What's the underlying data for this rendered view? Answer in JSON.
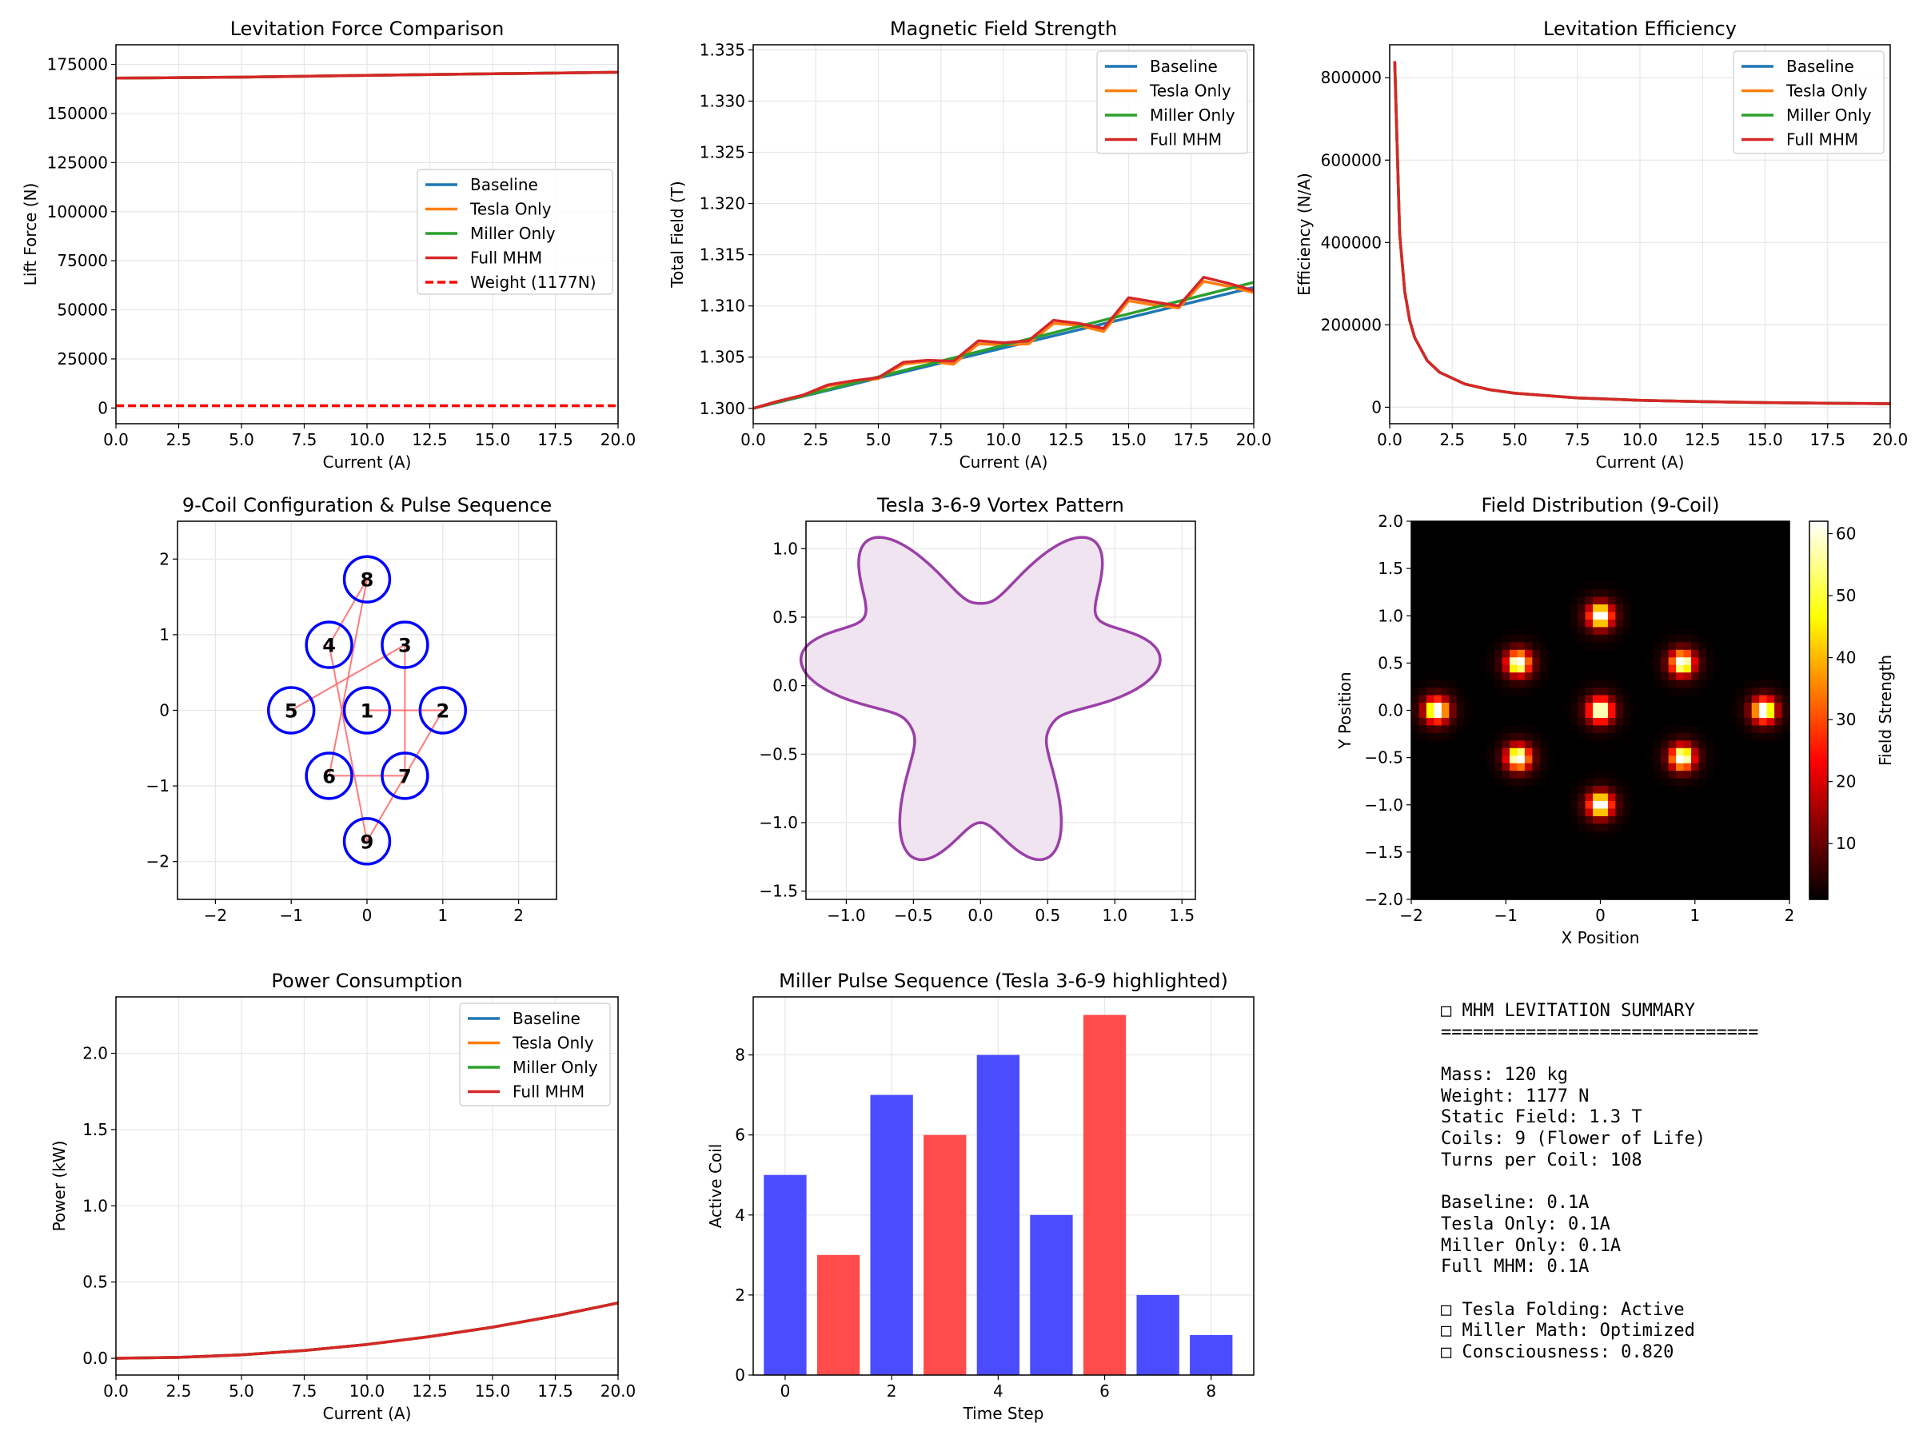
{
  "chart_data": [
    {
      "type": "line",
      "title": "Levitation Force Comparison",
      "xlabel": "Current (A)",
      "ylabel": "Lift Force (N)",
      "xlim": [
        0,
        20
      ],
      "ylim": [
        -8000,
        185000
      ],
      "xticks": [
        "0.0",
        "2.5",
        "5.0",
        "7.5",
        "10.0",
        "12.5",
        "15.0",
        "17.5",
        "20.0"
      ],
      "yticks": [
        "0",
        "25000",
        "50000",
        "75000",
        "100000",
        "125000",
        "150000",
        "175000"
      ],
      "series": [
        {
          "name": "Baseline",
          "color": "#1f77b4",
          "x": [
            0,
            5,
            10,
            15,
            20
          ],
          "y": [
            168000,
            168500,
            169400,
            170200,
            171000
          ]
        },
        {
          "name": "Tesla Only",
          "color": "#ff7f0e",
          "x": [
            0,
            5,
            10,
            15,
            20
          ],
          "y": [
            168000,
            168500,
            169400,
            170200,
            171000
          ]
        },
        {
          "name": "Miller Only",
          "color": "#2ca02c",
          "x": [
            0,
            5,
            10,
            15,
            20
          ],
          "y": [
            168000,
            168500,
            169400,
            170200,
            171000
          ]
        },
        {
          "name": "Full MHM",
          "color": "#d62728",
          "x": [
            0,
            5,
            10,
            15,
            20
          ],
          "y": [
            168000,
            168500,
            169400,
            170200,
            171000
          ]
        },
        {
          "name": "Weight (1177N)",
          "color": "#ff0000",
          "dashed": true,
          "x": [
            0,
            20
          ],
          "y": [
            1177,
            1177
          ]
        }
      ],
      "legend": "center-right",
      "grid": true
    },
    {
      "type": "line",
      "title": "Magnetic Field Strength",
      "xlabel": "Current (A)",
      "ylabel": "Total Field (T)",
      "xlim": [
        0,
        20
      ],
      "ylim": [
        1.2985,
        1.3355
      ],
      "xticks": [
        "0.0",
        "2.5",
        "5.0",
        "7.5",
        "10.0",
        "12.5",
        "15.0",
        "17.5",
        "20.0"
      ],
      "yticks": [
        "1.300",
        "1.305",
        "1.310",
        "1.315",
        "1.320",
        "1.325",
        "1.330",
        "1.335"
      ],
      "series": [
        {
          "name": "Baseline",
          "color": "#1f77b4",
          "x": [
            0,
            20
          ],
          "y": [
            1.3,
            1.3118
          ]
        },
        {
          "name": "Tesla Only",
          "color": "#ff7f0e",
          "x": [
            0,
            1,
            2,
            3,
            4,
            5,
            6,
            7,
            8,
            9,
            10,
            11,
            12,
            13,
            14,
            15,
            16,
            17,
            18,
            19,
            20
          ],
          "y": [
            1.3,
            1.3007,
            1.3012,
            1.3022,
            1.3026,
            1.3029,
            1.3043,
            1.3046,
            1.3043,
            1.3063,
            1.3062,
            1.3063,
            1.3083,
            1.3081,
            1.3075,
            1.3105,
            1.3101,
            1.3098,
            1.3124,
            1.3119,
            1.3113
          ]
        },
        {
          "name": "Miller Only",
          "color": "#2ca02c",
          "x": [
            0,
            20
          ],
          "y": [
            1.3,
            1.3123
          ]
        },
        {
          "name": "Full MHM",
          "color": "#d62728",
          "x": [
            0,
            1,
            2,
            3,
            4,
            5,
            6,
            7,
            8,
            9,
            10,
            11,
            12,
            13,
            14,
            15,
            16,
            17,
            18,
            19,
            20
          ],
          "y": [
            1.3,
            1.3007,
            1.3013,
            1.3023,
            1.3027,
            1.303,
            1.3045,
            1.3047,
            1.3046,
            1.3066,
            1.3064,
            1.3066,
            1.3086,
            1.3083,
            1.3078,
            1.3108,
            1.3104,
            1.31,
            1.3128,
            1.3122,
            1.3115
          ]
        }
      ],
      "legend": "top-right",
      "grid": true
    },
    {
      "type": "line",
      "title": "Levitation Efficiency",
      "xlabel": "Current (A)",
      "ylabel": "Efficiency (N/A)",
      "xlim": [
        0,
        20
      ],
      "ylim": [
        -40000,
        880000
      ],
      "xticks": [
        "0.0",
        "2.5",
        "5.0",
        "7.5",
        "10.0",
        "12.5",
        "15.0",
        "17.5",
        "20.0"
      ],
      "yticks": [
        "0",
        "200000",
        "400000",
        "600000",
        "800000"
      ],
      "series": [
        {
          "name": "Baseline",
          "color": "#1f77b4",
          "x": [
            0.2,
            0.4,
            0.6,
            0.8,
            1,
            1.5,
            2,
            3,
            4,
            5,
            7.5,
            10,
            12.5,
            15,
            17.5,
            20
          ],
          "y": [
            840000,
            421000,
            281000,
            211000,
            169000,
            113000,
            84600,
            56500,
            42400,
            33900,
            22600,
            16900,
            13600,
            11300,
            9700,
            8500
          ]
        },
        {
          "name": "Tesla Only",
          "color": "#ff7f0e",
          "x": [
            0.2,
            0.4,
            0.6,
            0.8,
            1,
            1.5,
            2,
            3,
            4,
            5,
            7.5,
            10,
            12.5,
            15,
            17.5,
            20
          ],
          "y": [
            840000,
            421000,
            281000,
            211000,
            169000,
            113000,
            84600,
            56500,
            42400,
            33900,
            22600,
            16900,
            13600,
            11300,
            9700,
            8500
          ]
        },
        {
          "name": "Miller Only",
          "color": "#2ca02c",
          "x": [
            0.2,
            0.4,
            0.6,
            0.8,
            1,
            1.5,
            2,
            3,
            4,
            5,
            7.5,
            10,
            12.5,
            15,
            17.5,
            20
          ],
          "y": [
            840000,
            421000,
            281000,
            211000,
            169000,
            113000,
            84600,
            56500,
            42400,
            33900,
            22600,
            16900,
            13600,
            11300,
            9700,
            8500
          ]
        },
        {
          "name": "Full MHM",
          "color": "#d62728",
          "x": [
            0.2,
            0.4,
            0.6,
            0.8,
            1,
            1.5,
            2,
            3,
            4,
            5,
            7.5,
            10,
            12.5,
            15,
            17.5,
            20
          ],
          "y": [
            840000,
            421000,
            281000,
            211000,
            169000,
            113000,
            84600,
            56500,
            42400,
            33900,
            22600,
            16900,
            13600,
            11300,
            9700,
            8500
          ]
        }
      ],
      "legend": "top-right",
      "grid": true
    },
    {
      "type": "scatter",
      "title": "9-Coil Configuration & Pulse Sequence",
      "xlim": [
        -2.5,
        2.5
      ],
      "ylim": [
        -2.5,
        2.5
      ],
      "xticks": [
        "−2",
        "−1",
        "0",
        "1",
        "2"
      ],
      "yticks": [
        "−2",
        "−1",
        "0",
        "1",
        "2"
      ],
      "coils": [
        {
          "label": "1",
          "x": 0,
          "y": 0
        },
        {
          "label": "2",
          "x": 1,
          "y": 0
        },
        {
          "label": "3",
          "x": 0.5,
          "y": 0.866
        },
        {
          "label": "4",
          "x": -0.5,
          "y": 0.866
        },
        {
          "label": "5",
          "x": -1,
          "y": 0
        },
        {
          "label": "6",
          "x": -0.5,
          "y": -0.866
        },
        {
          "label": "7",
          "x": 0.5,
          "y": -0.866
        },
        {
          "label": "8",
          "x": 0,
          "y": 1.732
        },
        {
          "label": "9",
          "x": 0,
          "y": -1.732
        }
      ],
      "coil_color": "#0000ff",
      "pulse_sequence": [
        5,
        3,
        7,
        6,
        8,
        4,
        9,
        2,
        1
      ],
      "sequence_color": "#ff6b6b",
      "grid": true
    },
    {
      "type": "area",
      "title": "Tesla 3-6-9 Vortex Pattern",
      "xlim": [
        -1.3,
        1.6
      ],
      "ylim": [
        -1.56,
        1.2
      ],
      "xticks": [
        "−1.0",
        "−0.5",
        "0.0",
        "0.5",
        "1.0",
        "1.5"
      ],
      "yticks": [
        "−1.5",
        "−1.0",
        "−0.5",
        "0.0",
        "0.5",
        "1.0"
      ],
      "curve": "r(θ) = 1 + 0.3·sin(3θ) + 0.2·cos(6θ) + 0.1·sin(9θ)",
      "line_color": "#9b3fa8",
      "fill_color": "#efe1ef",
      "grid": true
    },
    {
      "type": "heatmap",
      "title": "Field Distribution (9-Coil)",
      "xlabel": "X Position",
      "ylabel": "Y Position",
      "xlim": [
        -2,
        2
      ],
      "ylim": [
        -2,
        2
      ],
      "xticks": [
        "−2",
        "−1",
        "0",
        "1",
        "2"
      ],
      "yticks": [
        "−2.0",
        "−1.5",
        "−1.0",
        "−0.5",
        "0.0",
        "0.5",
        "1.0",
        "1.5",
        "2.0"
      ],
      "colorbar_label": "Field Strength",
      "colorbar_ticks": [
        "10",
        "20",
        "30",
        "40",
        "50",
        "60"
      ],
      "colorbar_range": [
        1,
        62
      ],
      "colormap": "hot",
      "peaks": [
        {
          "x": 0,
          "y": 0
        },
        {
          "x": 0,
          "y": 1
        },
        {
          "x": 0,
          "y": -1
        },
        {
          "x": 0.866,
          "y": 0.5
        },
        {
          "x": -0.866,
          "y": 0.5
        },
        {
          "x": 0.866,
          "y": -0.5
        },
        {
          "x": -0.866,
          "y": -0.5
        },
        {
          "x": 1.732,
          "y": 0
        },
        {
          "x": -1.732,
          "y": 0
        }
      ]
    },
    {
      "type": "line",
      "title": "Power Consumption",
      "xlabel": "Current (A)",
      "ylabel": "Power (kW)",
      "xlim": [
        0,
        20
      ],
      "ylim": [
        -0.11,
        2.37
      ],
      "xticks": [
        "0.0",
        "2.5",
        "5.0",
        "7.5",
        "10.0",
        "12.5",
        "15.0",
        "17.5",
        "20.0"
      ],
      "yticks": [
        "0.0",
        "0.5",
        "1.0",
        "1.5",
        "2.0"
      ],
      "series": [
        {
          "name": "Baseline",
          "color": "#1f77b4",
          "x": [
            0,
            2.5,
            5,
            7.5,
            10,
            12.5,
            15,
            17.5,
            20
          ],
          "y": [
            0,
            0.0057,
            0.0227,
            0.051,
            0.091,
            0.142,
            0.204,
            0.278,
            0.363
          ]
        },
        {
          "name": "Tesla Only",
          "color": "#ff7f0e",
          "x": [
            0,
            2.5,
            5,
            7.5,
            10,
            12.5,
            15,
            17.5,
            20
          ],
          "y": [
            0,
            0.0057,
            0.0227,
            0.051,
            0.091,
            0.142,
            0.204,
            0.278,
            0.363
          ]
        },
        {
          "name": "Miller Only",
          "color": "#2ca02c",
          "x": [
            0,
            2.5,
            5,
            7.5,
            10,
            12.5,
            15,
            17.5,
            20
          ],
          "y": [
            0,
            0.0057,
            0.0227,
            0.051,
            0.091,
            0.142,
            0.204,
            0.278,
            0.363
          ]
        },
        {
          "name": "Full MHM",
          "color": "#d62728",
          "x": [
            0,
            2.5,
            5,
            7.5,
            10,
            12.5,
            15,
            17.5,
            20
          ],
          "y": [
            0,
            0.0057,
            0.0227,
            0.051,
            0.091,
            0.142,
            0.204,
            0.278,
            0.363
          ]
        }
      ],
      "legend": "top-right",
      "grid": true
    },
    {
      "type": "bar",
      "title": "Miller Pulse Sequence (Tesla 3-6-9 highlighted)",
      "xlabel": "Time Step",
      "ylabel": "Active Coil",
      "xlim": [
        -0.6,
        8.8
      ],
      "ylim": [
        0,
        9.45
      ],
      "xticks": [
        "0",
        "2",
        "4",
        "6",
        "8"
      ],
      "yticks": [
        "0",
        "2",
        "4",
        "6",
        "8"
      ],
      "categories": [
        0,
        1,
        2,
        3,
        4,
        5,
        6,
        7,
        8
      ],
      "values": [
        5,
        3,
        7,
        6,
        8,
        4,
        9,
        2,
        1
      ],
      "colors": [
        "#4b4bff",
        "#ff4b4b",
        "#4b4bff",
        "#ff4b4b",
        "#4b4bff",
        "#4b4bff",
        "#ff4b4b",
        "#4b4bff",
        "#4b4bff"
      ],
      "grid": true
    }
  ],
  "summary": {
    "lines": [
      "□ MHM LEVITATION SUMMARY",
      "==============================",
      "",
      "Mass: 120 kg",
      "Weight: 1177 N",
      "Static Field: 1.3 T",
      "Coils: 9 (Flower of Life)",
      "Turns per Coil: 108",
      "",
      "Baseline: 0.1A",
      "Tesla Only: 0.1A",
      "Miller Only: 0.1A",
      "Full MHM: 0.1A",
      "",
      "□ Tesla Folding: Active",
      "□ Miller Math: Optimized",
      "□ Consciousness: 0.820"
    ]
  }
}
